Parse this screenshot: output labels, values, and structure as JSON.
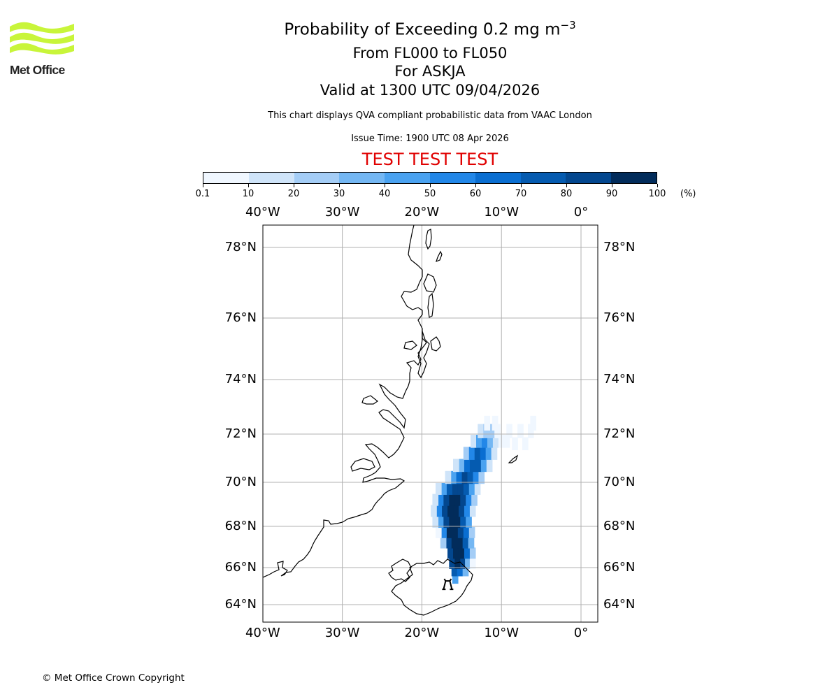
{
  "header": {
    "title_main": "Probability of Exceeding 0.2 mg m",
    "title_superscript": "−3",
    "flight_levels": "From FL000 to FL050",
    "volcano": "For ASKJA",
    "valid_time": "Valid at 1300 UTC 09/04/2026",
    "description": "This chart displays QVA compliant probabilistic data from VAAC London",
    "issue_time": "Issue Time: 1900 UTC 08 Apr 2026",
    "test_banner": "TEST TEST TEST"
  },
  "logo": {
    "text": "Met Office",
    "color": "#c8f53a"
  },
  "colorbar": {
    "ticks": [
      "0.1",
      "10",
      "20",
      "30",
      "40",
      "50",
      "60",
      "70",
      "80",
      "90",
      "100"
    ],
    "unit": "(%)",
    "colors": [
      "#f0f7ff",
      "#cfe4f9",
      "#a4cdf6",
      "#74b7f3",
      "#4aa2f0",
      "#2287e8",
      "#0a6ed1",
      "#055bb0",
      "#03478f",
      "#022c5b"
    ]
  },
  "map": {
    "lon_ticks": [
      {
        "label": "40°W",
        "value": -40
      },
      {
        "label": "30°W",
        "value": -30
      },
      {
        "label": "20°W",
        "value": -20
      },
      {
        "label": "10°W",
        "value": -10
      },
      {
        "label": "0°",
        "value": 0
      }
    ],
    "lat_ticks": [
      {
        "label": "78°N",
        "value": 78
      },
      {
        "label": "76°N",
        "value": 76
      },
      {
        "label": "74°N",
        "value": 74
      },
      {
        "label": "72°N",
        "value": 72
      },
      {
        "label": "70°N",
        "value": 70
      },
      {
        "label": "68°N",
        "value": 68
      },
      {
        "label": "66°N",
        "value": 66
      },
      {
        "label": "64°N",
        "value": 64
      }
    ],
    "lon_range": [
      -40,
      2
    ],
    "lat_range": [
      63.5,
      79
    ],
    "volcano_marker": {
      "lat": 65.05,
      "lon": -16.75
    },
    "plume_cells": [
      {
        "lat": 65.4,
        "lon": -15.8,
        "prob": 45
      },
      {
        "lat": 65.8,
        "lon": -15.9,
        "prob": 75
      },
      {
        "lat": 65.8,
        "lon": -15.2,
        "prob": 65
      },
      {
        "lat": 65.8,
        "lon": -14.5,
        "prob": 30
      },
      {
        "lat": 66.2,
        "lon": -16.2,
        "prob": 85
      },
      {
        "lat": 66.2,
        "lon": -15.5,
        "prob": 92
      },
      {
        "lat": 66.2,
        "lon": -14.8,
        "prob": 85
      },
      {
        "lat": 66.2,
        "lon": -14.2,
        "prob": 35
      },
      {
        "lat": 66.2,
        "lon": -13.6,
        "prob": 8
      },
      {
        "lat": 66.7,
        "lon": -16.4,
        "prob": 85
      },
      {
        "lat": 66.7,
        "lon": -15.7,
        "prob": 95
      },
      {
        "lat": 66.7,
        "lon": -15.0,
        "prob": 92
      },
      {
        "lat": 66.7,
        "lon": -14.3,
        "prob": 65
      },
      {
        "lat": 66.7,
        "lon": -13.6,
        "prob": 20
      },
      {
        "lat": 67.2,
        "lon": -16.6,
        "prob": 80
      },
      {
        "lat": 67.2,
        "lon": -15.9,
        "prob": 95
      },
      {
        "lat": 67.2,
        "lon": -15.2,
        "prob": 92
      },
      {
        "lat": 67.2,
        "lon": -14.5,
        "prob": 75
      },
      {
        "lat": 67.2,
        "lon": -13.8,
        "prob": 35
      },
      {
        "lat": 67.2,
        "lon": -17.3,
        "prob": 20
      },
      {
        "lat": 67.7,
        "lon": -17.2,
        "prob": 55
      },
      {
        "lat": 67.7,
        "lon": -16.5,
        "prob": 92
      },
      {
        "lat": 67.7,
        "lon": -15.8,
        "prob": 95
      },
      {
        "lat": 67.7,
        "lon": -15.1,
        "prob": 88
      },
      {
        "lat": 67.7,
        "lon": -14.4,
        "prob": 65
      },
      {
        "lat": 67.7,
        "lon": -13.7,
        "prob": 20
      },
      {
        "lat": 67.7,
        "lon": -17.9,
        "prob": 8
      },
      {
        "lat": 68.2,
        "lon": -17.6,
        "prob": 45
      },
      {
        "lat": 68.2,
        "lon": -16.9,
        "prob": 85
      },
      {
        "lat": 68.2,
        "lon": -16.2,
        "prob": 95
      },
      {
        "lat": 68.2,
        "lon": -15.5,
        "prob": 92
      },
      {
        "lat": 68.2,
        "lon": -14.8,
        "prob": 75
      },
      {
        "lat": 68.2,
        "lon": -14.1,
        "prob": 40
      },
      {
        "lat": 68.2,
        "lon": -18.3,
        "prob": 12
      },
      {
        "lat": 68.7,
        "lon": -17.8,
        "prob": 50
      },
      {
        "lat": 68.7,
        "lon": -17.1,
        "prob": 85
      },
      {
        "lat": 68.7,
        "lon": -16.4,
        "prob": 95
      },
      {
        "lat": 68.7,
        "lon": -15.7,
        "prob": 92
      },
      {
        "lat": 68.7,
        "lon": -15.0,
        "prob": 80
      },
      {
        "lat": 68.7,
        "lon": -14.3,
        "prob": 50
      },
      {
        "lat": 68.7,
        "lon": -13.6,
        "prob": 15
      },
      {
        "lat": 68.7,
        "lon": -18.5,
        "prob": 10
      },
      {
        "lat": 69.2,
        "lon": -17.6,
        "prob": 55
      },
      {
        "lat": 69.2,
        "lon": -16.9,
        "prob": 85
      },
      {
        "lat": 69.2,
        "lon": -16.2,
        "prob": 95
      },
      {
        "lat": 69.2,
        "lon": -15.5,
        "prob": 92
      },
      {
        "lat": 69.2,
        "lon": -14.8,
        "prob": 80
      },
      {
        "lat": 69.2,
        "lon": -14.1,
        "prob": 55
      },
      {
        "lat": 69.2,
        "lon": -13.4,
        "prob": 20
      },
      {
        "lat": 69.2,
        "lon": -18.3,
        "prob": 15
      },
      {
        "lat": 69.7,
        "lon": -17.2,
        "prob": 45
      },
      {
        "lat": 69.7,
        "lon": -16.5,
        "prob": 75
      },
      {
        "lat": 69.7,
        "lon": -15.8,
        "prob": 88
      },
      {
        "lat": 69.7,
        "lon": -15.1,
        "prob": 85
      },
      {
        "lat": 69.7,
        "lon": -14.4,
        "prob": 70
      },
      {
        "lat": 69.7,
        "lon": -13.7,
        "prob": 45
      },
      {
        "lat": 69.7,
        "lon": -13.0,
        "prob": 15
      },
      {
        "lat": 69.7,
        "lon": -17.9,
        "prob": 10
      },
      {
        "lat": 70.2,
        "lon": -16.0,
        "prob": 40
      },
      {
        "lat": 70.2,
        "lon": -15.3,
        "prob": 65
      },
      {
        "lat": 70.2,
        "lon": -14.6,
        "prob": 80
      },
      {
        "lat": 70.2,
        "lon": -13.9,
        "prob": 72
      },
      {
        "lat": 70.2,
        "lon": -13.2,
        "prob": 50
      },
      {
        "lat": 70.2,
        "lon": -12.5,
        "prob": 20
      },
      {
        "lat": 70.2,
        "lon": -16.7,
        "prob": 12
      },
      {
        "lat": 70.7,
        "lon": -15.0,
        "prob": 35
      },
      {
        "lat": 70.7,
        "lon": -14.3,
        "prob": 65
      },
      {
        "lat": 70.7,
        "lon": -13.6,
        "prob": 78
      },
      {
        "lat": 70.7,
        "lon": -12.9,
        "prob": 70
      },
      {
        "lat": 70.7,
        "lon": -12.2,
        "prob": 45
      },
      {
        "lat": 70.7,
        "lon": -11.5,
        "prob": 15
      },
      {
        "lat": 70.7,
        "lon": -15.7,
        "prob": 10
      },
      {
        "lat": 71.2,
        "lon": -14.4,
        "prob": 25
      },
      {
        "lat": 71.2,
        "lon": -13.7,
        "prob": 55
      },
      {
        "lat": 71.2,
        "lon": -13.0,
        "prob": 72
      },
      {
        "lat": 71.2,
        "lon": -12.3,
        "prob": 65
      },
      {
        "lat": 71.2,
        "lon": -11.6,
        "prob": 40
      },
      {
        "lat": 71.2,
        "lon": -10.9,
        "prob": 15
      },
      {
        "lat": 71.7,
        "lon": -13.5,
        "prob": 18
      },
      {
        "lat": 71.7,
        "lon": -12.8,
        "prob": 40
      },
      {
        "lat": 71.7,
        "lon": -12.1,
        "prob": 50
      },
      {
        "lat": 71.7,
        "lon": -11.4,
        "prob": 35
      },
      {
        "lat": 71.7,
        "lon": -10.7,
        "prob": 15
      },
      {
        "lat": 71.7,
        "lon": -10.0,
        "prob": 8
      },
      {
        "lat": 71.7,
        "lon": -9.3,
        "prob": 5
      },
      {
        "lat": 72.1,
        "lon": -12.6,
        "prob": 15
      },
      {
        "lat": 72.1,
        "lon": -11.9,
        "prob": 25
      },
      {
        "lat": 72.1,
        "lon": -11.2,
        "prob": 20
      },
      {
        "lat": 72.1,
        "lon": -10.5,
        "prob": 8
      },
      {
        "lat": 72.1,
        "lon": -9.0,
        "prob": 5
      },
      {
        "lat": 72.1,
        "lon": -7.6,
        "prob": 5
      },
      {
        "lat": 72.1,
        "lon": -6.3,
        "prob": 5
      },
      {
        "lat": 72.4,
        "lon": -11.8,
        "prob": 8
      },
      {
        "lat": 72.4,
        "lon": -10.8,
        "prob": 5
      },
      {
        "lat": 72.4,
        "lon": -6.0,
        "prob": 5
      },
      {
        "lat": 71.6,
        "lon": -8.3,
        "prob": 5
      },
      {
        "lat": 71.6,
        "lon": -7.0,
        "prob": 5
      }
    ]
  },
  "footer": {
    "copyright": "© Met Office Crown Copyright"
  }
}
